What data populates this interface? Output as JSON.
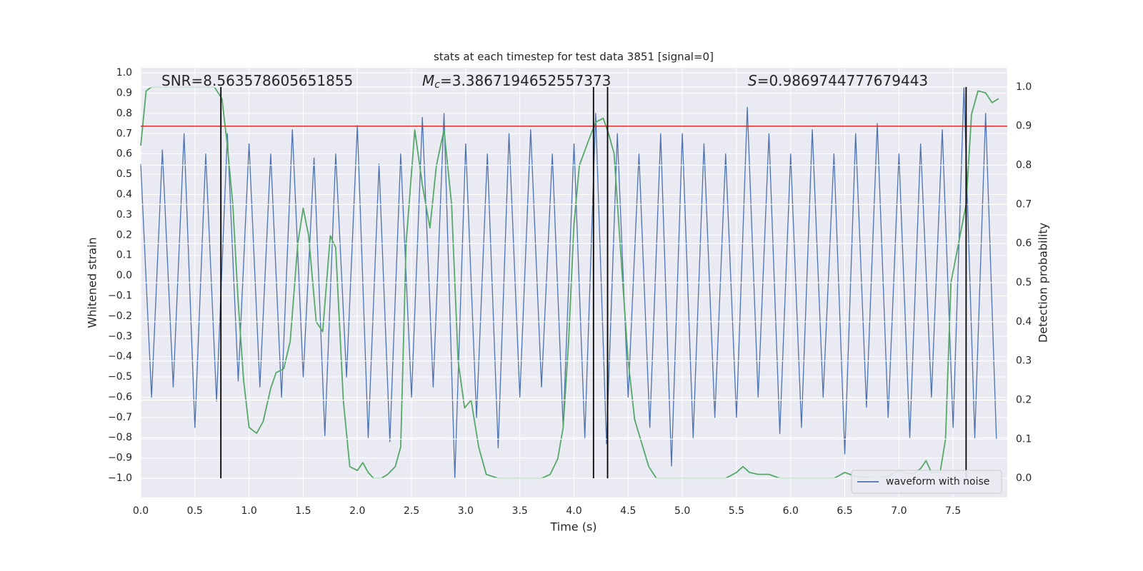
{
  "chart_data": {
    "type": "line",
    "title": "stats at each timestep for test data 3851 [signal=0]",
    "x_label": "Time (s)",
    "y_label": "Whitened strain",
    "y2_label": "Detection probability",
    "annotations": [
      {
        "text": "SNR=8.563578605651855"
      },
      {
        "symbol": "M",
        "subscript": "c",
        "text": "=3.3867194652557373"
      },
      {
        "symbol": "S",
        "text": "=0.9869744777679443"
      }
    ],
    "xlim": [
      0,
      8
    ],
    "ylim": [
      -1.095,
      1.025
    ],
    "y2lim": [
      -0.049,
      1.049
    ],
    "xticks": [
      {
        "value": 0,
        "label": "0.0"
      },
      0.5,
      {
        "value": 1,
        "label": "1.0"
      },
      1.5,
      {
        "value": 2,
        "label": "2.0"
      },
      2.5,
      {
        "value": 3,
        "label": "3.0"
      },
      3.5,
      {
        "value": 4,
        "label": "4.0"
      },
      4.5,
      {
        "value": 5,
        "label": "5.0"
      },
      5.5,
      {
        "value": 6,
        "label": "6.0"
      },
      6.5,
      {
        "value": 7,
        "label": "7.0"
      },
      7.5
    ],
    "yticks": [
      {
        "value": -1,
        "label": "−1.0"
      },
      {
        "value": -0.9,
        "label": "−0.9"
      },
      {
        "value": -0.8,
        "label": "−0.8"
      },
      {
        "value": -0.7,
        "label": "−0.7"
      },
      {
        "value": -0.6,
        "label": "−0.6"
      },
      {
        "value": -0.5,
        "label": "−0.5"
      },
      {
        "value": -0.4,
        "label": "−0.4"
      },
      {
        "value": -0.3,
        "label": "−0.3"
      },
      {
        "value": -0.2,
        "label": "−0.2"
      },
      {
        "value": -0.1,
        "label": "−0.1"
      },
      {
        "value": 0,
        "label": "0.0"
      },
      0.1,
      0.2,
      0.3,
      0.4,
      0.5,
      0.6,
      0.7,
      0.8,
      0.9,
      {
        "value": 1,
        "label": "1.0"
      }
    ],
    "y2ticks": [
      {
        "value": 0,
        "label": "0.0"
      },
      0.1,
      0.2,
      0.3,
      0.4,
      0.5,
      0.6,
      0.7,
      0.8,
      0.9,
      {
        "value": 1,
        "label": "1.0"
      }
    ],
    "grid": true,
    "legend_loc": "lower right",
    "series": [
      {
        "name": "waveform with noise",
        "color": "#4c72b0",
        "x": [
          0.0,
          0.1,
          0.2,
          0.3,
          0.4,
          0.5,
          0.6,
          0.7,
          0.8,
          0.9,
          1.0,
          1.1,
          1.2,
          1.3,
          1.4,
          1.5,
          1.6,
          1.7,
          1.8,
          1.9,
          2.0,
          2.1,
          2.2,
          2.3,
          2.4,
          2.5,
          2.6,
          2.7,
          2.8,
          2.9,
          3.0,
          3.1,
          3.2,
          3.3,
          3.4,
          3.5,
          3.6,
          3.7,
          3.8,
          3.9,
          4.0,
          4.1,
          4.2,
          4.3,
          4.4,
          4.5,
          4.6,
          4.7,
          4.8,
          4.9,
          5.0,
          5.1,
          5.2,
          5.3,
          5.4,
          5.5,
          5.6,
          5.7,
          5.8,
          5.9,
          6.0,
          6.1,
          6.2,
          6.3,
          6.4,
          6.5,
          6.6,
          6.7,
          6.8,
          6.9,
          7.0,
          7.1,
          7.2,
          7.3,
          7.4,
          7.5,
          7.6,
          7.7,
          7.8,
          7.9
        ],
        "values": [
          0.55,
          -0.6,
          0.62,
          -0.55,
          0.7,
          -0.75,
          0.6,
          -0.62,
          0.7,
          -0.52,
          0.65,
          -0.55,
          0.6,
          -0.6,
          0.72,
          -0.5,
          0.58,
          -0.79,
          0.6,
          -0.5,
          0.74,
          -0.8,
          0.55,
          -0.82,
          0.6,
          -0.6,
          0.78,
          -0.55,
          0.8,
          -1.0,
          0.65,
          -0.7,
          0.6,
          -0.85,
          0.7,
          -0.6,
          0.72,
          -0.55,
          0.6,
          -0.75,
          0.65,
          -0.8,
          0.8,
          -0.83,
          0.7,
          -0.6,
          0.6,
          -0.75,
          0.7,
          -0.94,
          0.7,
          -0.8,
          0.65,
          -0.7,
          0.6,
          -0.7,
          0.83,
          -0.6,
          0.7,
          -0.78,
          0.6,
          -0.75,
          0.72,
          -0.6,
          0.6,
          -0.88,
          0.7,
          -0.65,
          0.75,
          -0.7,
          0.6,
          -0.8,
          0.65,
          -0.6,
          0.72,
          -0.75,
          0.93,
          -0.8,
          0.8,
          -0.81
        ]
      },
      {
        "color": "#55a868",
        "axis": "y2",
        "x": [
          0,
          0.05,
          0.1,
          0.68,
          0.75,
          0.8,
          0.85,
          0.9,
          0.95,
          1.0,
          1.07,
          1.13,
          1.2,
          1.25,
          1.32,
          1.38,
          1.45,
          1.5,
          1.55,
          1.62,
          1.68,
          1.75,
          1.8,
          1.87,
          1.93,
          2.0,
          2.05,
          2.1,
          2.15,
          2.22,
          2.28,
          2.35,
          2.4,
          2.45,
          2.53,
          2.6,
          2.67,
          2.73,
          2.8,
          2.87,
          2.93,
          2.99,
          3.05,
          3.12,
          3.19,
          3.3,
          3.5,
          3.7,
          3.78,
          3.85,
          3.9,
          3.95,
          4.0,
          4.05,
          4.13,
          4.2,
          4.27,
          4.32,
          4.37,
          4.45,
          4.5,
          4.56,
          4.69,
          4.76,
          5.0,
          5.4,
          5.5,
          5.56,
          5.62,
          5.7,
          5.8,
          5.9,
          6.2,
          6.4,
          6.5,
          6.6,
          6.8,
          6.9,
          7.0,
          7.05,
          7.13,
          7.2,
          7.25,
          7.3,
          7.38,
          7.43,
          7.48,
          7.55,
          7.62,
          7.67,
          7.73,
          7.8,
          7.86,
          7.92
        ],
        "values": [
          0.85,
          0.99,
          1.0,
          1.0,
          0.97,
          0.85,
          0.7,
          0.45,
          0.25,
          0.13,
          0.115,
          0.145,
          0.23,
          0.27,
          0.28,
          0.35,
          0.6,
          0.69,
          0.62,
          0.4,
          0.375,
          0.62,
          0.59,
          0.2,
          0.03,
          0.02,
          0.04,
          0.015,
          0.0,
          0.0,
          0.01,
          0.03,
          0.08,
          0.6,
          0.89,
          0.75,
          0.64,
          0.8,
          0.89,
          0.7,
          0.3,
          0.18,
          0.2,
          0.08,
          0.01,
          0.0,
          0.0,
          0.0,
          0.01,
          0.05,
          0.13,
          0.35,
          0.65,
          0.8,
          0.86,
          0.91,
          0.92,
          0.88,
          0.83,
          0.5,
          0.3,
          0.15,
          0.03,
          0.0,
          0.0,
          0.0,
          0.015,
          0.03,
          0.015,
          0.01,
          0.01,
          0.0,
          0.0,
          0.0,
          0.015,
          0.005,
          0.0,
          0.005,
          0.02,
          0.015,
          0.01,
          0.025,
          0.045,
          0.015,
          0.015,
          0.1,
          0.5,
          0.6,
          0.7,
          0.93,
          0.99,
          0.985,
          0.96,
          0.97
        ]
      }
    ],
    "threshold": {
      "value": 0.9,
      "axis": "y2",
      "color": "#d0322c"
    },
    "vlines": {
      "x": [
        0.74,
        4.18,
        4.31,
        7.62
      ],
      "ymin": 0,
      "ymax": 1,
      "axis": "y2",
      "color": "#000000"
    }
  }
}
